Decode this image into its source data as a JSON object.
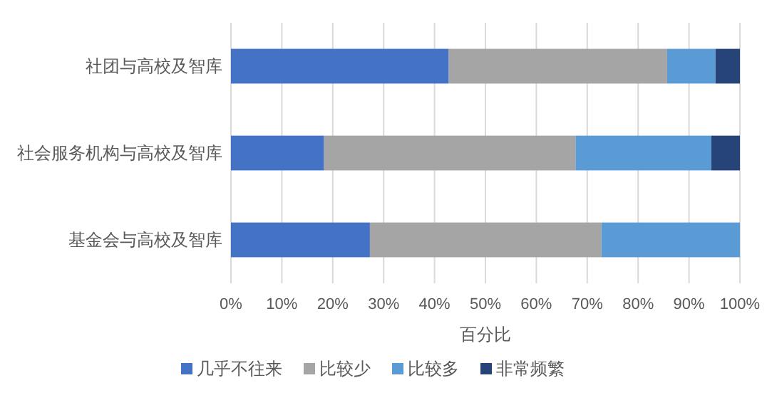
{
  "chart_data": {
    "type": "bar",
    "orientation": "horizontal",
    "stacked": true,
    "xlabel": "百分比",
    "categories": [
      "社团与高校及智库",
      "社会服务机构与高校及智库",
      "基金会与高校及智库"
    ],
    "series": [
      {
        "name": "几乎不往来",
        "color": "#4472c4",
        "values": [
          42.8,
          18.3,
          27.3
        ]
      },
      {
        "name": "比较少",
        "color": "#a5a5a5",
        "values": [
          42.9,
          49.4,
          45.5
        ]
      },
      {
        "name": "比较多",
        "color": "#5b9bd5",
        "values": [
          9.5,
          26.7,
          27.2
        ]
      },
      {
        "name": "非常频繁",
        "color": "#264478",
        "values": [
          4.8,
          5.6,
          0
        ]
      }
    ],
    "xlim": [
      0,
      100
    ],
    "xticks": [
      {
        "value": 0,
        "label": "0%"
      },
      {
        "value": 10,
        "label": "10%"
      },
      {
        "value": 20,
        "label": "20%"
      },
      {
        "value": 30,
        "label": "30%"
      },
      {
        "value": 40,
        "label": "40%"
      },
      {
        "value": 50,
        "label": "50%"
      },
      {
        "value": 60,
        "label": "60%"
      },
      {
        "value": 70,
        "label": "70%"
      },
      {
        "value": 80,
        "label": "80%"
      },
      {
        "value": 90,
        "label": "90%"
      },
      {
        "value": 100,
        "label": "100%"
      }
    ],
    "grid": "x",
    "legend": "bottom"
  }
}
